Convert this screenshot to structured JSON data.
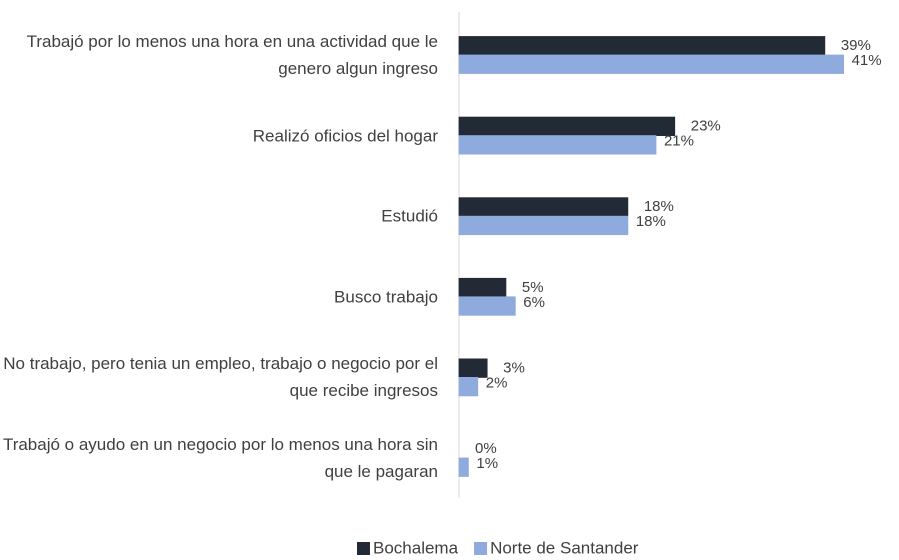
{
  "chart_data": {
    "type": "barh",
    "categories": [
      "Trabajó por lo menos una hora en una actividad que le genero algun ingreso",
      "Realizó oficios del hogar",
      "Estudió",
      "Busco trabajo",
      "No trabajo, pero tenia un empleo, trabajo o negocio por el que recibe ingresos",
      "Trabajó o ayudo en un negocio por lo menos una hora sin que le pagaran"
    ],
    "series": [
      {
        "name": "Bochalema",
        "color": "#222a35",
        "values": [
          39,
          23,
          18,
          5,
          3,
          0
        ],
        "value_labels": [
          "39%",
          "23%",
          "18%",
          "5%",
          "3%",
          "0%"
        ]
      },
      {
        "name": "Norte de Santander",
        "color": "#8faadc",
        "values": [
          41,
          21,
          18,
          6,
          2,
          1
        ],
        "value_labels": [
          "41%",
          "21%",
          "18%",
          "6%",
          "2%",
          "1%"
        ]
      }
    ],
    "legend": "bottom"
  }
}
